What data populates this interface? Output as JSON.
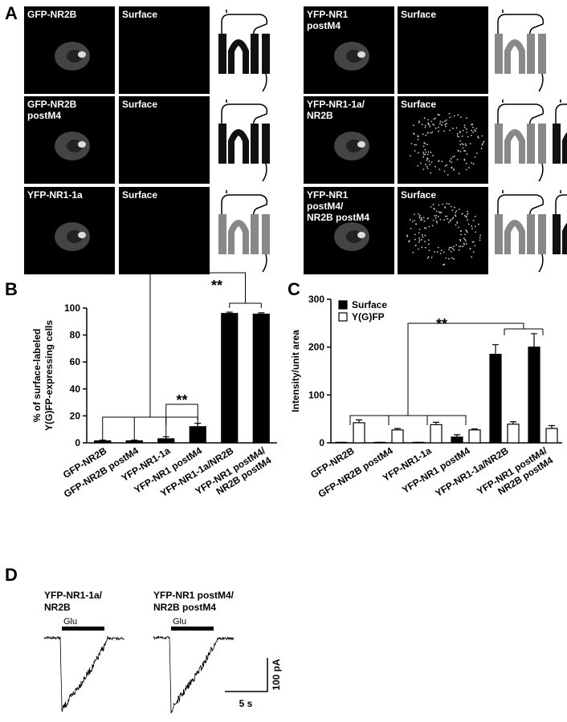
{
  "panel_labels": [
    "A",
    "B",
    "C",
    "D"
  ],
  "panel_a": {
    "surface_label": "Surface",
    "colors": {
      "NR2B": "#111111",
      "NR1": "#888888"
    },
    "cells": [
      {
        "label": "GFP-NR2B",
        "subunits": [
          "NR2B"
        ]
      },
      {
        "label": "GFP-NR2B\npostM4",
        "subunits": [
          "NR2B"
        ]
      },
      {
        "label": "YFP-NR1-1a",
        "subunits": [
          "NR1"
        ]
      },
      {
        "label": "YFP-NR1\npostM4",
        "subunits": [
          "NR1"
        ]
      },
      {
        "label": "YFP-NR1-1a/\nNR2B",
        "subunits": [
          "NR1",
          "NR2B"
        ]
      },
      {
        "label": "YFP-NR1\npostM4/\nNR2B postM4",
        "subunits": [
          "NR1",
          "NR2B"
        ]
      }
    ]
  },
  "chart_data": [
    {
      "type": "bar",
      "y_label": "% of surface-labeled\nY(G)FP-expressing cells",
      "categories": [
        "GFP-NR2B",
        "GFP-NR2B postM4",
        "YFP-NR1-1a",
        "YFP-NR1 postM4",
        "YFP-NR1-1a/NR2B",
        "YFP-NR1 postM4/\nNR2B postM4"
      ],
      "series": [
        {
          "color": "#000000",
          "values": [
            1.5,
            1.5,
            3,
            12,
            96,
            95.5
          ],
          "errors": [
            0.5,
            0.5,
            1.5,
            2.5,
            1,
            1
          ]
        }
      ],
      "ylim": [
        0,
        100
      ],
      "yticks": [
        0,
        20,
        40,
        60,
        80,
        100
      ],
      "annotations": [
        "**",
        "**"
      ]
    },
    {
      "type": "bar",
      "y_label": "Intensity/unit area",
      "categories": [
        "GFP-NR2B",
        "GFP-NR2B postM4",
        "YFP-NR1-1a",
        "YFP-NR1 postM4",
        "YFP-NR1-1a/NR2B",
        "YFP-NR1 postM4/\nNR2B postM4"
      ],
      "series": [
        {
          "name": "Surface",
          "color": "#000000",
          "values": [
            1,
            1,
            1,
            12,
            185,
            200
          ],
          "errors": [
            0,
            0,
            0,
            5,
            20,
            28
          ]
        },
        {
          "name": "Y(G)FP",
          "color": "#ffffff",
          "values": [
            42,
            27,
            38,
            27,
            39,
            30
          ],
          "errors": [
            6,
            3,
            5,
            2,
            5,
            6
          ]
        }
      ],
      "ylim": [
        0,
        300
      ],
      "yticks": [
        0,
        100,
        200,
        300
      ],
      "legend": "upper left",
      "annotations": [
        "**"
      ]
    }
  ],
  "panel_d": {
    "traces": [
      {
        "label": "YFP-NR1-1a/\nNR2B",
        "stimulus": "Glu"
      },
      {
        "label": "YFP-NR1 postM4/\nNR2B postM4",
        "stimulus": "Glu"
      }
    ],
    "scale_y": "100 pA",
    "scale_x": "5 s"
  }
}
